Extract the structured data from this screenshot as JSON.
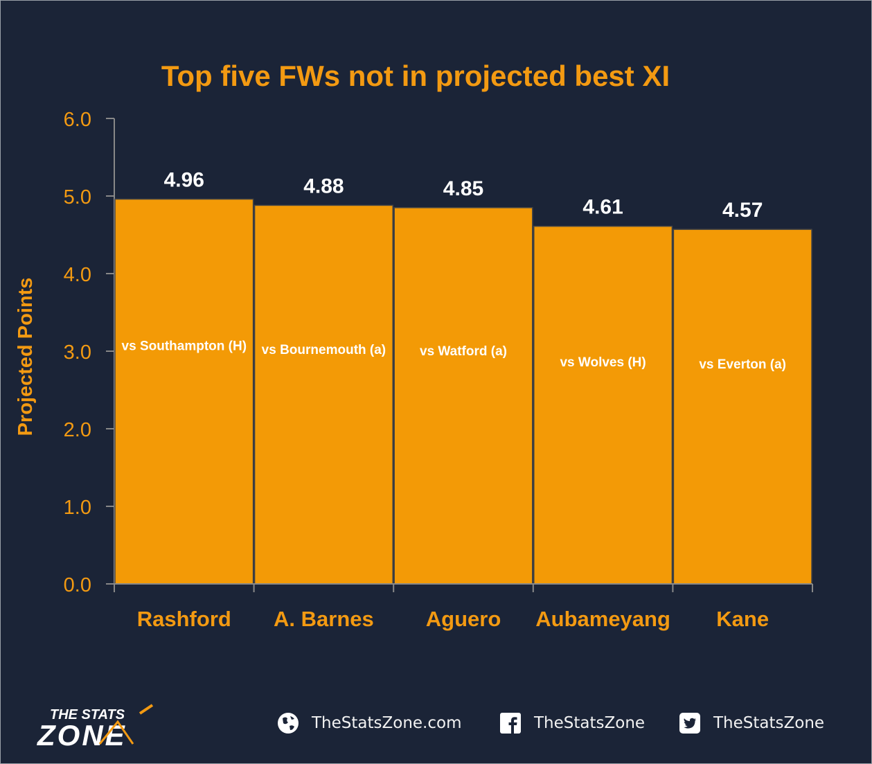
{
  "chart_data": {
    "type": "bar",
    "title": "Top five FWs not in projected best XI",
    "ylabel": "Projected Points",
    "xlabel": "",
    "ylim": [
      0,
      6
    ],
    "yticks": [
      "0.0",
      "1.0",
      "2.0",
      "3.0",
      "4.0",
      "5.0",
      "6.0"
    ],
    "categories": [
      "Rashford",
      "A. Barnes",
      "Aguero",
      "Aubameyang",
      "Kane"
    ],
    "values": [
      4.96,
      4.88,
      4.85,
      4.61,
      4.57
    ],
    "value_labels": [
      "4.96",
      "4.88",
      "4.85",
      "4.61",
      "4.57"
    ],
    "fixtures": [
      "vs Southampton (H)",
      "vs Bournemouth (a)",
      "vs Watford (a)",
      "vs Wolves (H)",
      "vs Everton (a)"
    ],
    "bar_color": "#f39a06",
    "text_color": "#f39a12",
    "grid": false,
    "legend": "none"
  },
  "footer": {
    "brand_top": "THE STATS",
    "brand_bottom": "ZONE",
    "website": "TheStatsZone.com",
    "facebook": "TheStatsZone",
    "twitter": "TheStatsZone",
    "website_icon": "globe-icon",
    "facebook_icon": "facebook-icon",
    "twitter_icon": "twitter-icon"
  }
}
